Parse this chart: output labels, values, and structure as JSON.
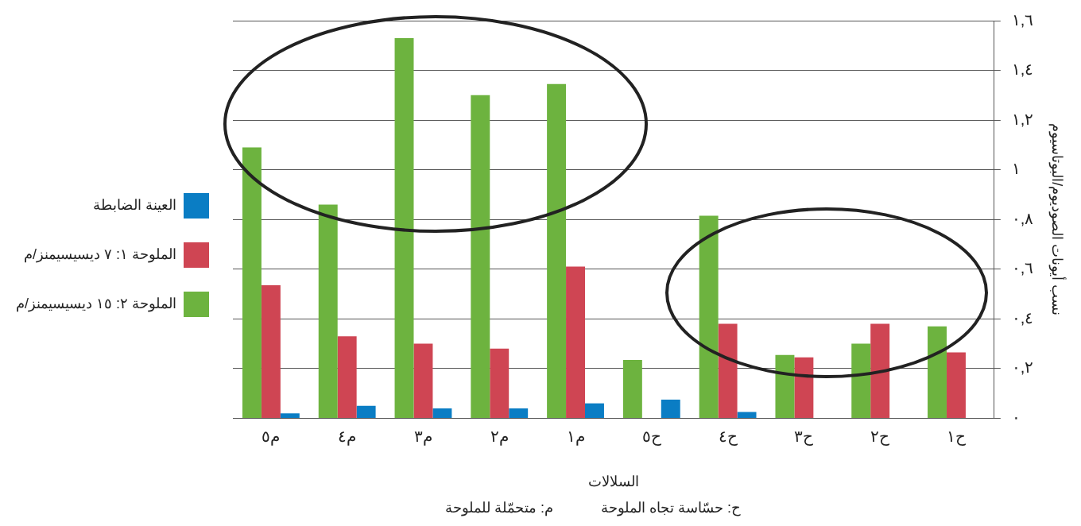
{
  "chart_data": {
    "type": "bar",
    "xlabel": "السلالات",
    "ylabel": "نسب أيونات الصوديوم/البوتاسيوم",
    "categories": [
      "م٥",
      "م٤",
      "م٣",
      "م٢",
      "م١",
      "ح٥",
      "ح٤",
      "ح٣",
      "ح٢",
      "ح١"
    ],
    "series": [
      {
        "name": "الملوحة ٢: ١٥ ديسيسيمنز/م",
        "color": "#6db33f",
        "values": [
          1.09,
          0.86,
          1.53,
          1.3,
          1.345,
          0.235,
          0.815,
          0.255,
          0.3,
          0.37
        ]
      },
      {
        "name": "الملوحة ١: ٧ ديسيسيمنز/م",
        "color": "#cf4553",
        "values": [
          0.535,
          0.33,
          0.3,
          0.28,
          0.61,
          null,
          0.38,
          0.245,
          0.38,
          0.265
        ]
      },
      {
        "name": "العينة الضابطة",
        "color": "#0a7dc4",
        "values": [
          0.02,
          0.05,
          0.04,
          0.04,
          0.06,
          0.075,
          0.025,
          null,
          null,
          null
        ]
      }
    ],
    "ylim": [
      0,
      1.6
    ],
    "yticks": [
      {
        "value": 0,
        "label": "٠"
      },
      {
        "value": 0.2,
        "label": "٠,٢"
      },
      {
        "value": 0.4,
        "label": "٠,٤"
      },
      {
        "value": 0.6,
        "label": "٠,٦"
      },
      {
        "value": 0.8,
        "label": "٠,٨"
      },
      {
        "value": 1,
        "label": "١"
      },
      {
        "value": 1.2,
        "label": "١,٢"
      },
      {
        "value": 1.4,
        "label": "١,٤"
      },
      {
        "value": 1.6,
        "label": "١,٦"
      }
    ],
    "grid": "y",
    "legend": "left",
    "annotations": [
      "ح: حسّاسة تجاه الملوحة",
      "م: متحمّلة للملوحة"
    ]
  }
}
